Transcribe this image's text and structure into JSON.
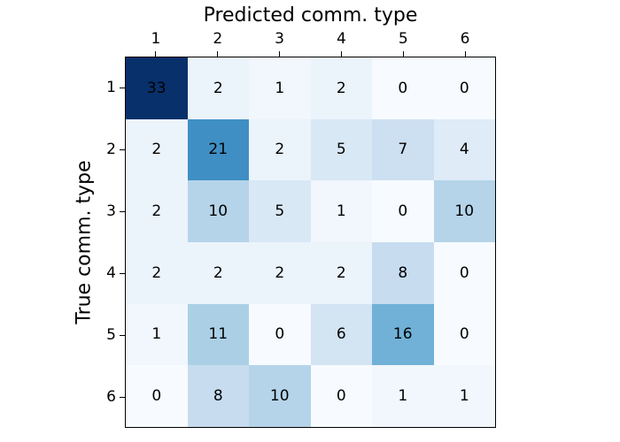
{
  "figure": {
    "background": "#ffffff"
  },
  "chart_data": {
    "type": "heatmap",
    "xlabel": "Predicted comm. type",
    "ylabel": "True comm. type",
    "x_tick_labels": [
      "1",
      "2",
      "3",
      "4",
      "5",
      "6"
    ],
    "y_tick_labels": [
      "1",
      "2",
      "3",
      "4",
      "5",
      "6"
    ],
    "matrix": [
      [
        33,
        2,
        1,
        2,
        0,
        0
      ],
      [
        2,
        21,
        2,
        5,
        7,
        4
      ],
      [
        2,
        10,
        5,
        1,
        0,
        10
      ],
      [
        2,
        2,
        2,
        2,
        8,
        0
      ],
      [
        1,
        11,
        0,
        6,
        16,
        0
      ],
      [
        0,
        8,
        10,
        0,
        1,
        1
      ]
    ],
    "vmin": 0,
    "vmax": 33,
    "colormap_name": "Blues",
    "colormap_stops": [
      "#f7fbff",
      "#deebf7",
      "#c6dbef",
      "#9ecae1",
      "#6baed6",
      "#4292c6",
      "#2171b5",
      "#08519c",
      "#08306b"
    ],
    "cell_text_color": "#000000",
    "axes_edge_color": "#000000",
    "tick_color": "#000000",
    "legend": "none",
    "grid": "off"
  }
}
